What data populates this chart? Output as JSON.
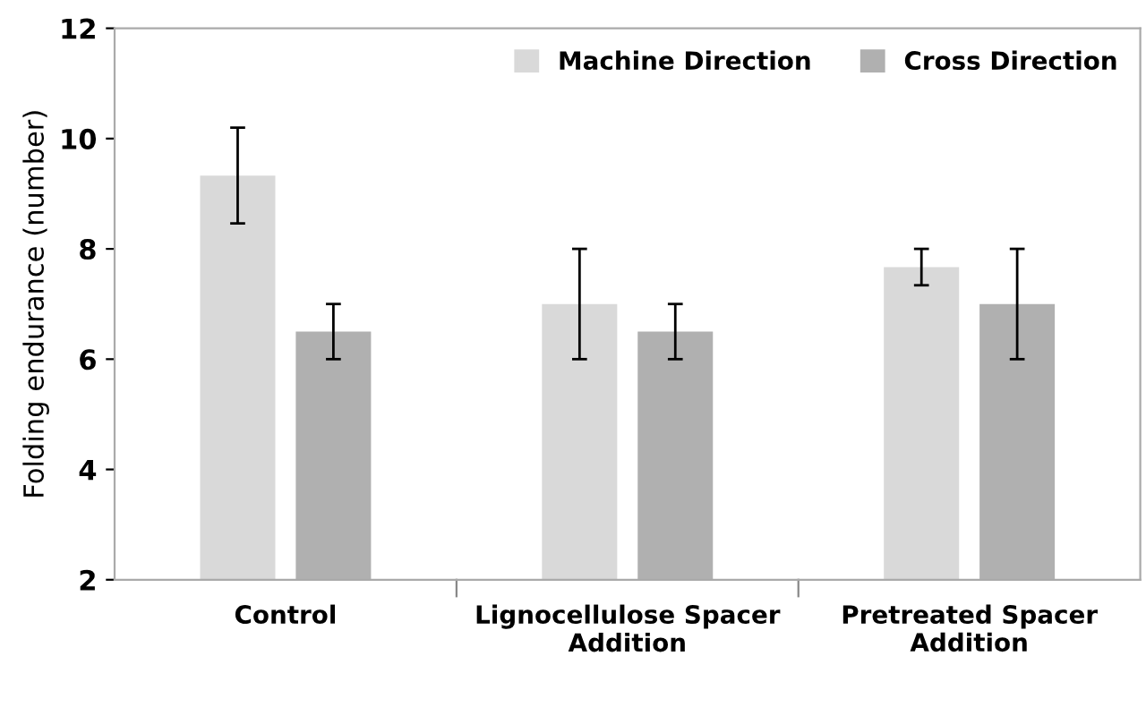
{
  "chart_data": {
    "type": "bar",
    "ylabel": "Folding endurance (number)",
    "categories": [
      "Control",
      "Lignocellulose Spacer\nAddition",
      "Pretreated Spacer\nAddition"
    ],
    "series": [
      {
        "name": "Machine Direction",
        "color": "#d9d9d9",
        "values": [
          9.33,
          7,
          7.67
        ],
        "errors": [
          0.87,
          1,
          0.33
        ]
      },
      {
        "name": "Cross Direction",
        "color": "#b0b0b0",
        "values": [
          6.5,
          6.5,
          7
        ],
        "errors": [
          0.5,
          0.5,
          1
        ]
      }
    ],
    "ylim": [
      2,
      12
    ],
    "yticks": [
      2,
      4,
      6,
      8,
      10,
      12
    ],
    "grid": false,
    "legend": "top right"
  }
}
